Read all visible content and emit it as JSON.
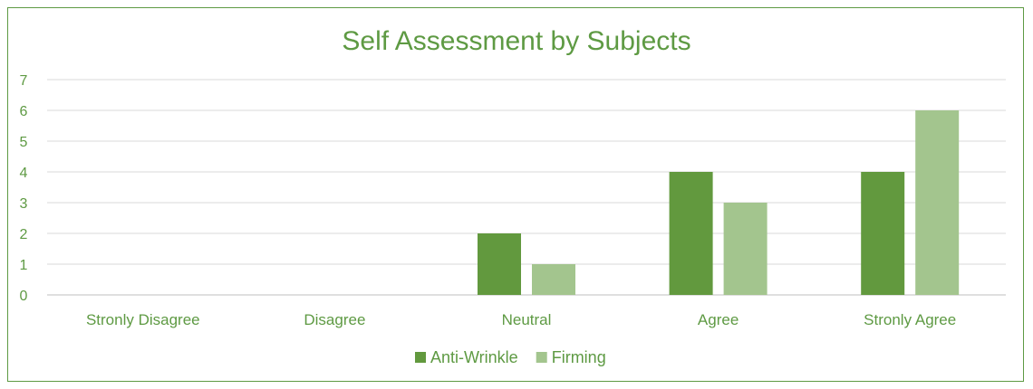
{
  "chart_data": {
    "type": "bar",
    "title": "Self Assessment by Subjects",
    "categories": [
      "Stronly Disagree",
      "Disagree",
      "Neutral",
      "Agree",
      "Stronly Agree"
    ],
    "series": [
      {
        "name": "Anti-Wrinkle",
        "values": [
          0,
          0,
          2,
          4,
          4
        ],
        "color": "#62993e"
      },
      {
        "name": "Firming",
        "values": [
          0,
          0,
          1,
          3,
          6
        ],
        "color": "#a3c58e"
      }
    ],
    "ylim": [
      0,
      7
    ],
    "yticks": [
      0,
      1,
      2,
      3,
      4,
      5,
      6,
      7
    ],
    "grid": true,
    "legend_position": "bottom"
  }
}
